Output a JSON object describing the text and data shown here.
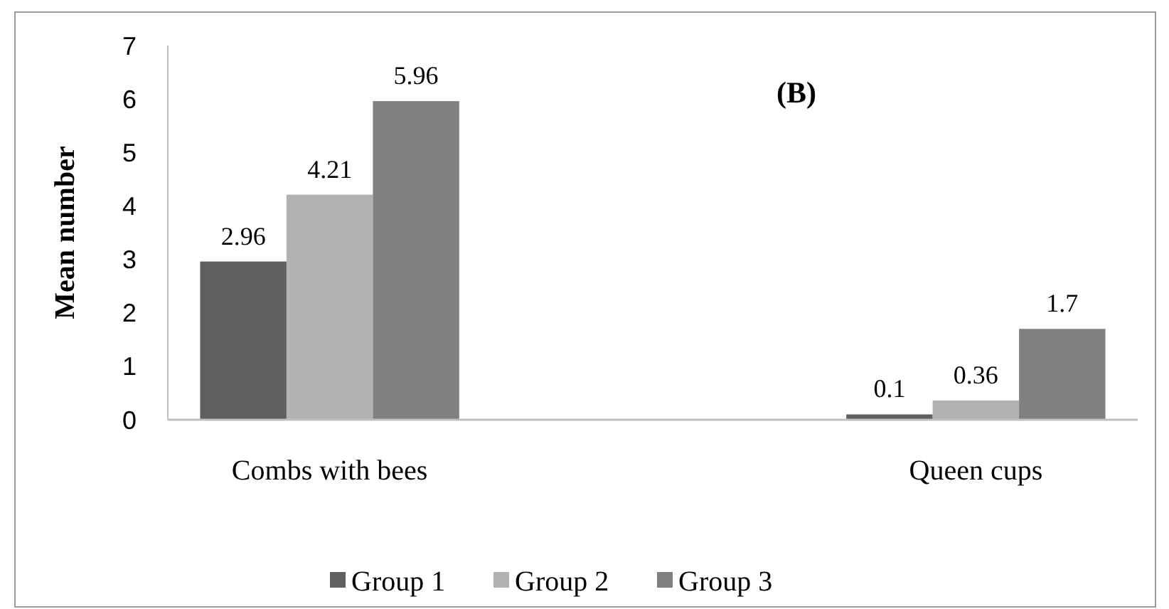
{
  "chart_data": {
    "type": "bar",
    "ylabel": "Mean number",
    "annotations": [
      "(B)"
    ],
    "categories": [
      "Combs with bees",
      "Queen cups"
    ],
    "series": [
      {
        "name": "Group 1",
        "color": "#5f5f5f",
        "values": [
          2.96,
          0.1
        ]
      },
      {
        "name": "Group 2",
        "color": "#b2b2b2",
        "values": [
          4.21,
          0.36
        ]
      },
      {
        "name": "Group 3",
        "color": "#808080",
        "values": [
          5.96,
          1.7
        ]
      }
    ],
    "ylim": [
      0,
      7
    ],
    "yticks": [
      0,
      1,
      2,
      3,
      4,
      5,
      6,
      7
    ],
    "data_labels": true,
    "legend": "bottom",
    "grid": false
  }
}
